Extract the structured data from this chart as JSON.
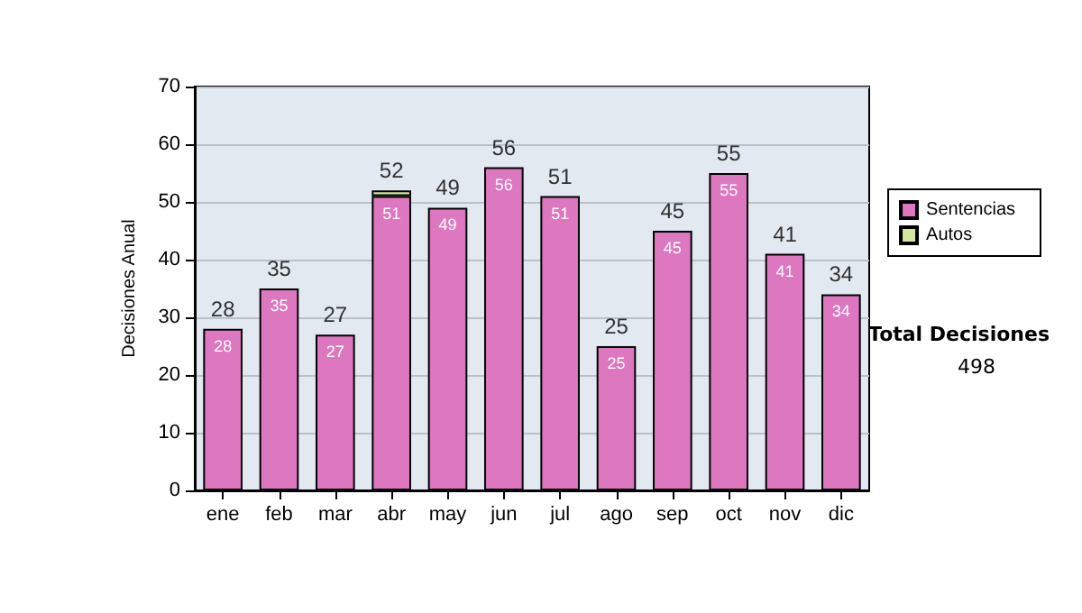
{
  "chart_data": {
    "type": "bar",
    "stacked": true,
    "ylabel": "Decisiones Anual",
    "categories": [
      "ene",
      "feb",
      "mar",
      "abr",
      "may",
      "jun",
      "jul",
      "ago",
      "sep",
      "oct",
      "nov",
      "dic"
    ],
    "series": [
      {
        "name": "Sentencias",
        "color": "#dd77c0",
        "values": [
          28,
          35,
          27,
          51,
          49,
          56,
          51,
          25,
          45,
          55,
          41,
          34
        ],
        "value_labels": [
          "28",
          "35",
          "27",
          "51",
          "49",
          "56",
          "51",
          "25",
          "45",
          "55",
          "41",
          "34"
        ]
      },
      {
        "name": "Autos",
        "color": "#d4e8a0",
        "values": [
          null,
          null,
          null,
          1,
          null,
          null,
          null,
          null,
          null,
          null,
          null,
          null
        ]
      }
    ],
    "totals": [
      "28",
      "35",
      "27",
      "52",
      "49",
      "56",
      "51",
      "25",
      "45",
      "55",
      "41",
      "34"
    ],
    "ylim": [
      0,
      70
    ],
    "yticks": [
      0,
      10,
      20,
      30,
      40,
      50,
      60,
      70
    ],
    "grid": "y",
    "legend": "right",
    "annotations": [
      "Total Decisiones",
      "498"
    ]
  }
}
